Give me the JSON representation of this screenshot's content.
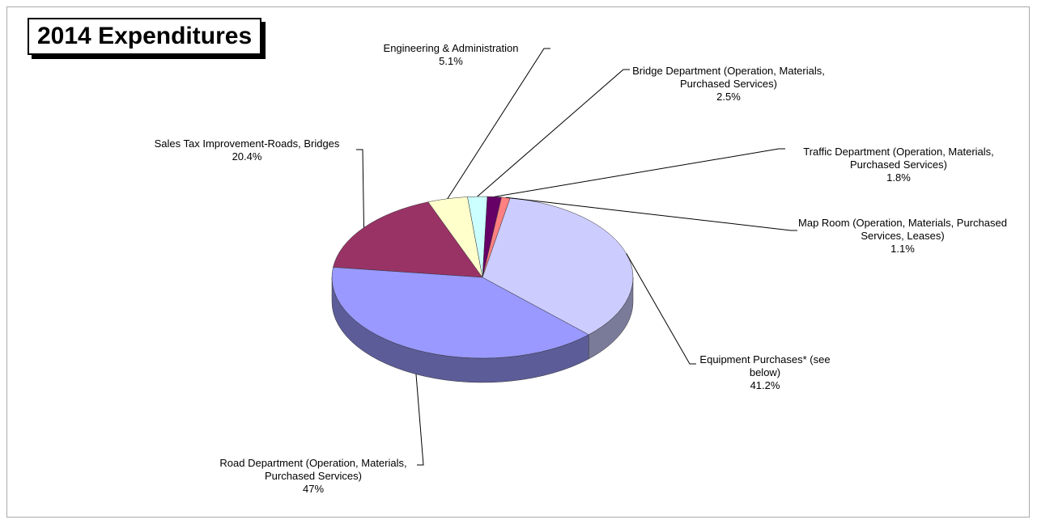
{
  "chart_data": {
    "type": "pie",
    "title": "2014 Expenditures",
    "categories": [
      "Sales Tax Improvement-Roads, Bridges",
      "Engineering & Administration",
      "Bridge Department (Operation, Materials, Purchased Services)",
      "Traffic Department (Operation, Materials, Purchased Services)",
      "Map Room (Operation, Materials, Purchased Services, Leases)",
      "Equipment Purchases* (see below)",
      "Road Department (Operation, Materials, Purchased Services)"
    ],
    "values": [
      20.4,
      5.1,
      2.5,
      1.8,
      1.1,
      41.2,
      47
    ],
    "value_labels": [
      "20.4%",
      "5.1%",
      "2.5%",
      "1.8%",
      "1.1%",
      "41.2%",
      "47%"
    ],
    "colors": [
      "#993366",
      "#ffffcc",
      "#ccffff",
      "#660066",
      "#ff8080",
      "#ccccff",
      "#9999ff"
    ]
  }
}
